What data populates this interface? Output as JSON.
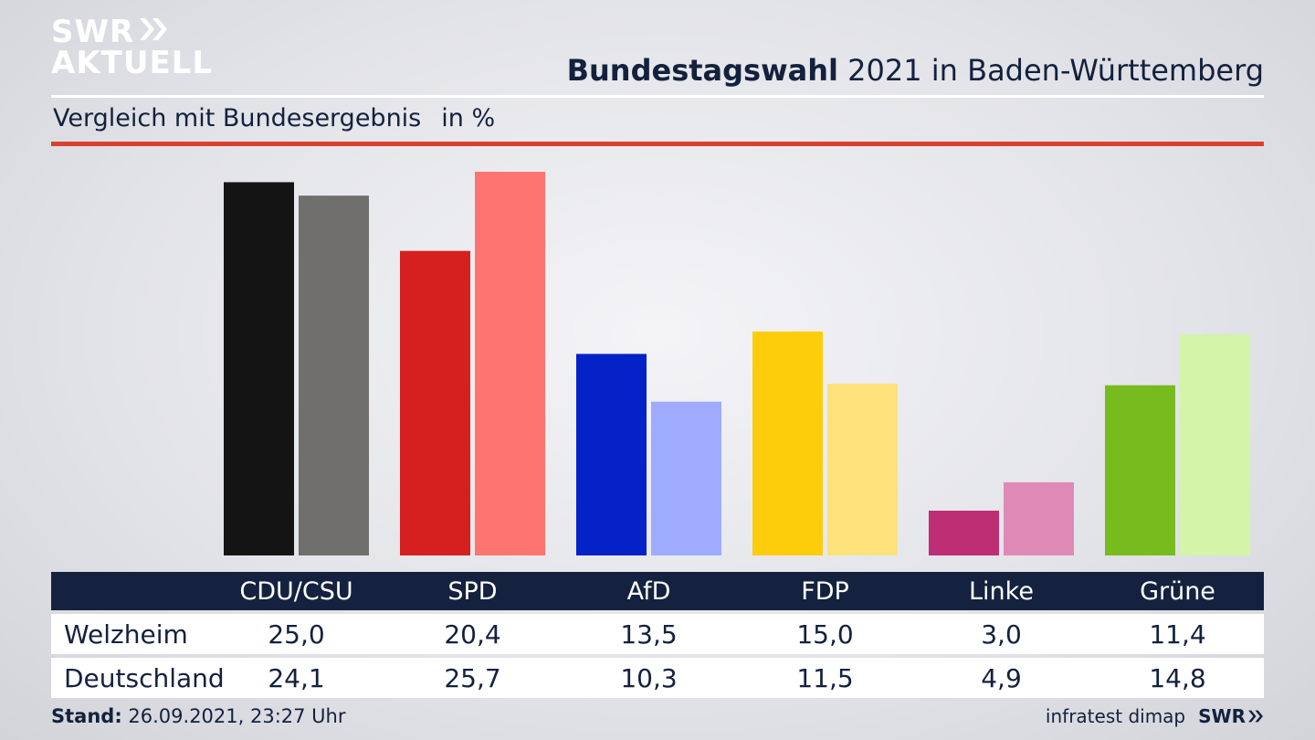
{
  "logo": {
    "line1": "SWR",
    "line2": "AKTUELL"
  },
  "title": {
    "bold": "Bundestagswahl",
    "rest": " 2021 in Baden-Württemberg"
  },
  "subtitle": {
    "text": "Vergleich mit Bundesergebnis",
    "unit": "in %"
  },
  "footer": {
    "stand_label": "Stand:",
    "stand_value": " 26.09.2021, 23:27 Uhr",
    "source": "infratest dimap",
    "brand": "SWR"
  },
  "table": {
    "headers": [
      "CDU/CSU",
      "SPD",
      "AfD",
      "FDP",
      "Linke",
      "Grüne"
    ],
    "rows": [
      {
        "label": "Welzheim",
        "values": [
          "25,0",
          "20,4",
          "13,5",
          "15,0",
          "3,0",
          "11,4"
        ]
      },
      {
        "label": "Deutschland",
        "values": [
          "24,1",
          "25,7",
          "10,3",
          "11,5",
          "4,9",
          "14,8"
        ]
      }
    ]
  },
  "chart_data": {
    "type": "bar",
    "categories": [
      "CDU/CSU",
      "SPD",
      "AfD",
      "FDP",
      "Linke",
      "Grüne"
    ],
    "series": [
      {
        "name": "Welzheim",
        "values": [
          25.0,
          20.4,
          13.5,
          15.0,
          3.0,
          11.4
        ]
      },
      {
        "name": "Deutschland",
        "values": [
          24.1,
          25.7,
          10.3,
          11.5,
          4.9,
          14.8
        ]
      }
    ],
    "colors": {
      "Welzheim": [
        "#141414",
        "#d62020",
        "#0422c8",
        "#fdcd0c",
        "#bd2e74",
        "#78bb1e"
      ],
      "Deutschland": [
        "#706f6d",
        "#fe7470",
        "#9eabff",
        "#fde17a",
        "#df8ab6",
        "#d3f4a9"
      ]
    },
    "title": "Bundestagswahl 2021 in Baden-Württemberg",
    "subtitle": "Vergleich mit Bundesergebnis",
    "unit": "in %",
    "ylim": [
      0,
      25.7
    ],
    "grid": false,
    "legend": "none"
  }
}
